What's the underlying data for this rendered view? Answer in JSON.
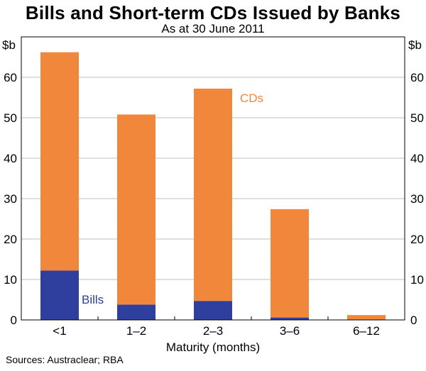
{
  "title": "Bills and Short-term CDs Issued by Banks",
  "subtitle": "As at 30 June 2011",
  "source": "Sources: Austraclear; RBA",
  "chart_data": {
    "type": "bar",
    "stacked": true,
    "title": "Bills and Short-term CDs Issued by Banks",
    "subtitle": "As at 30 June 2011",
    "xlabel": "Maturity (months)",
    "ylabel_left": "$b",
    "ylabel_right": "$b",
    "ylim": [
      0,
      70
    ],
    "yticks": [
      0,
      10,
      20,
      30,
      40,
      50,
      60
    ],
    "grid": true,
    "categories": [
      "<1",
      "1–2",
      "2–3",
      "3–6",
      "6–12"
    ],
    "series": [
      {
        "name": "Bills",
        "color": "#2e3f9e",
        "values": [
          12.2,
          3.8,
          4.7,
          0.6,
          0.0
        ]
      },
      {
        "name": "CDs",
        "color": "#f0873a",
        "values": [
          54.0,
          47.0,
          52.5,
          26.8,
          1.2
        ]
      }
    ],
    "annotations": [
      {
        "text": "Bills",
        "color": "#2e3f9e"
      },
      {
        "text": "CDs",
        "color": "#f0873a"
      }
    ]
  }
}
